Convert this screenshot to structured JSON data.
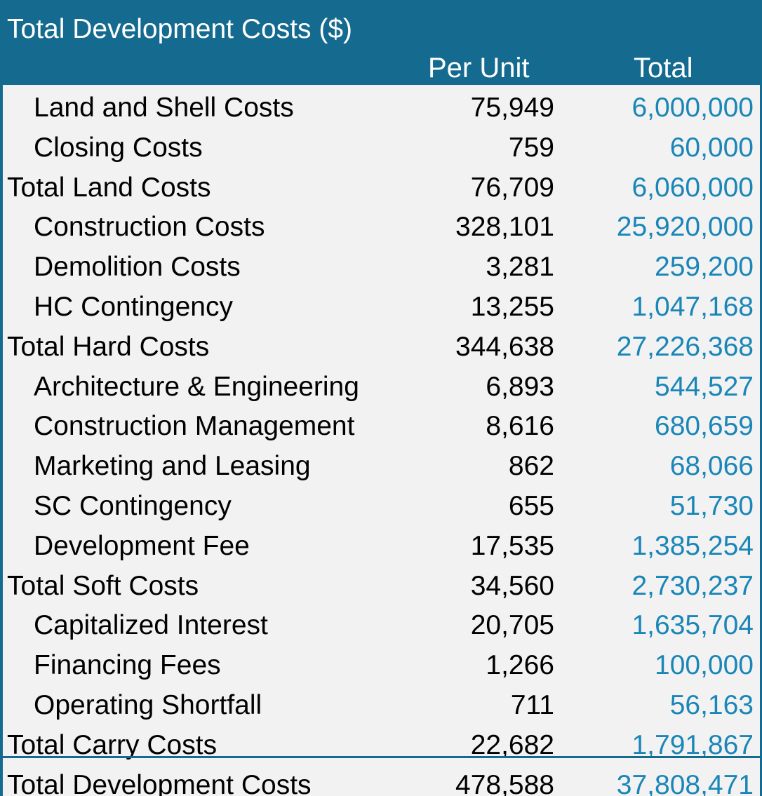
{
  "table": {
    "title": "Total Development Costs ($)",
    "columns": {
      "per_unit": "Per Unit",
      "total": "Total"
    },
    "rows": [
      {
        "label": "Land and Shell Costs",
        "per_unit": "75,949",
        "total": "6,000,000",
        "is_total": false
      },
      {
        "label": "Closing Costs",
        "per_unit": "759",
        "total": "60,000",
        "is_total": false
      },
      {
        "label": "Total Land Costs",
        "per_unit": "76,709",
        "total": "6,060,000",
        "is_total": true
      },
      {
        "label": "Construction Costs",
        "per_unit": "328,101",
        "total": "25,920,000",
        "is_total": false
      },
      {
        "label": "Demolition Costs",
        "per_unit": "3,281",
        "total": "259,200",
        "is_total": false
      },
      {
        "label": "HC Contingency",
        "per_unit": "13,255",
        "total": "1,047,168",
        "is_total": false
      },
      {
        "label": "Total Hard Costs",
        "per_unit": "344,638",
        "total": "27,226,368",
        "is_total": true
      },
      {
        "label": "Architecture & Engineering",
        "per_unit": "6,893",
        "total": "544,527",
        "is_total": false
      },
      {
        "label": "Construction Management",
        "per_unit": "8,616",
        "total": "680,659",
        "is_total": false
      },
      {
        "label": "Marketing and Leasing",
        "per_unit": "862",
        "total": "68,066",
        "is_total": false
      },
      {
        "label": "SC Contingency",
        "per_unit": "655",
        "total": "51,730",
        "is_total": false
      },
      {
        "label": "Development Fee",
        "per_unit": "17,535",
        "total": "1,385,254",
        "is_total": false
      },
      {
        "label": "Total Soft Costs",
        "per_unit": "34,560",
        "total": "2,730,237",
        "is_total": true
      },
      {
        "label": "Capitalized Interest",
        "per_unit": "20,705",
        "total": "1,635,704",
        "is_total": false
      },
      {
        "label": "Financing Fees",
        "per_unit": "1,266",
        "total": "100,000",
        "is_total": false
      },
      {
        "label": "Operating Shortfall",
        "per_unit": "711",
        "total": "56,163",
        "is_total": false
      },
      {
        "label": "Total Carry Costs",
        "per_unit": "22,682",
        "total": "1,791,867",
        "is_total": true
      },
      {
        "label": "Total Development Costs",
        "per_unit": "478,588",
        "total": "37,808,471",
        "is_total": true
      }
    ]
  },
  "colors": {
    "header_bg": "#156b8f",
    "header_text": "#ffffff",
    "body_bg": "#f2f2f2",
    "total_value_text": "#1a86b8"
  }
}
